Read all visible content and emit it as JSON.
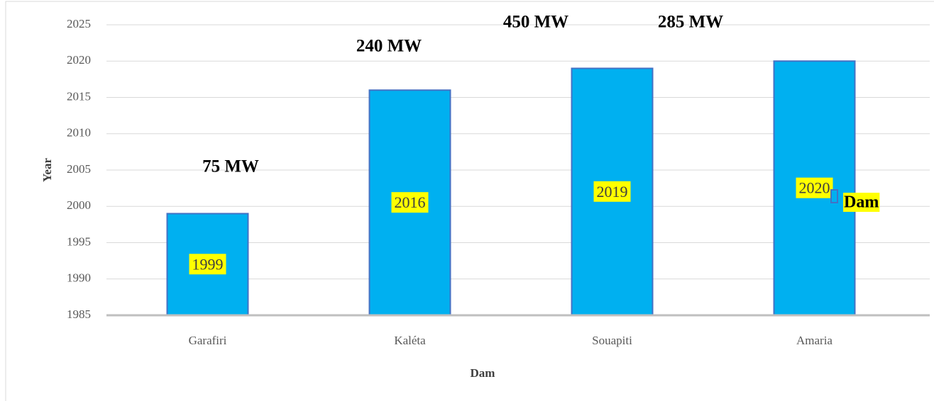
{
  "chart_data": {
    "type": "bar",
    "categories": [
      "Garafiri",
      "Kaléta",
      "Souapiti",
      "Amaria"
    ],
    "series": [
      {
        "name": "Dam",
        "color": "#00b0f0",
        "values": [
          1999,
          2016,
          2019,
          2020
        ]
      }
    ],
    "ylim": [
      1985,
      2025
    ],
    "yticks": [
      1985,
      1990,
      1995,
      2000,
      2005,
      2010,
      2015,
      2020,
      2025
    ],
    "grid": true,
    "x_label": "Dam",
    "y_label": "Year",
    "annotations": [
      "75 MW",
      "240 MW",
      "450 MW",
      "285 MW"
    ]
  }
}
